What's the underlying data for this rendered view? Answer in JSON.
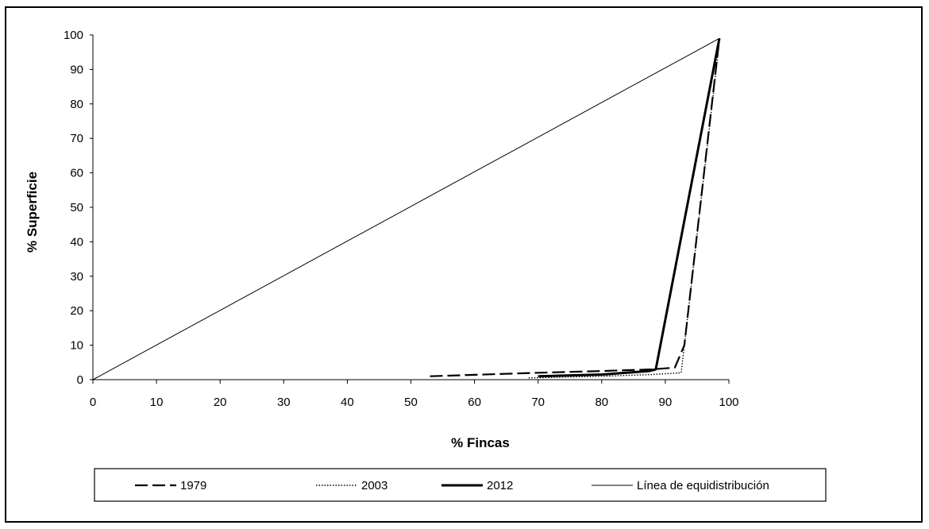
{
  "chart_data": {
    "type": "line",
    "title": "",
    "xlabel": "% Fincas",
    "ylabel": "% Superficie",
    "xlim": [
      0,
      100
    ],
    "ylim": [
      0,
      100
    ],
    "x_ticks": [
      0,
      10,
      20,
      30,
      40,
      50,
      60,
      70,
      80,
      90,
      100
    ],
    "y_ticks": [
      0,
      10,
      20,
      30,
      40,
      50,
      60,
      70,
      80,
      90,
      100
    ],
    "grid": false,
    "legend_position": "bottom",
    "series": [
      {
        "name": "1979",
        "style": "dashed",
        "color": "#000000",
        "points": [
          [
            53,
            1
          ],
          [
            70,
            2
          ],
          [
            80,
            2.5
          ],
          [
            88,
            3
          ],
          [
            91.5,
            3.5
          ],
          [
            93,
            10
          ],
          [
            98.5,
            99
          ]
        ]
      },
      {
        "name": "2003",
        "style": "dotted",
        "color": "#000000",
        "points": [
          [
            68.5,
            0.5
          ],
          [
            80,
            1
          ],
          [
            88,
            1.5
          ],
          [
            92.5,
            2
          ],
          [
            98.5,
            98
          ]
        ]
      },
      {
        "name": "2012",
        "style": "solid-thick",
        "color": "#000000",
        "points": [
          [
            70,
            1
          ],
          [
            80,
            1.5
          ],
          [
            87.5,
            2.5
          ],
          [
            88.5,
            3
          ],
          [
            98.5,
            99
          ]
        ]
      },
      {
        "name": "Línea de equidistribución",
        "style": "solid-thin",
        "color": "#000000",
        "points": [
          [
            0,
            0
          ],
          [
            98.5,
            99
          ]
        ]
      }
    ]
  }
}
